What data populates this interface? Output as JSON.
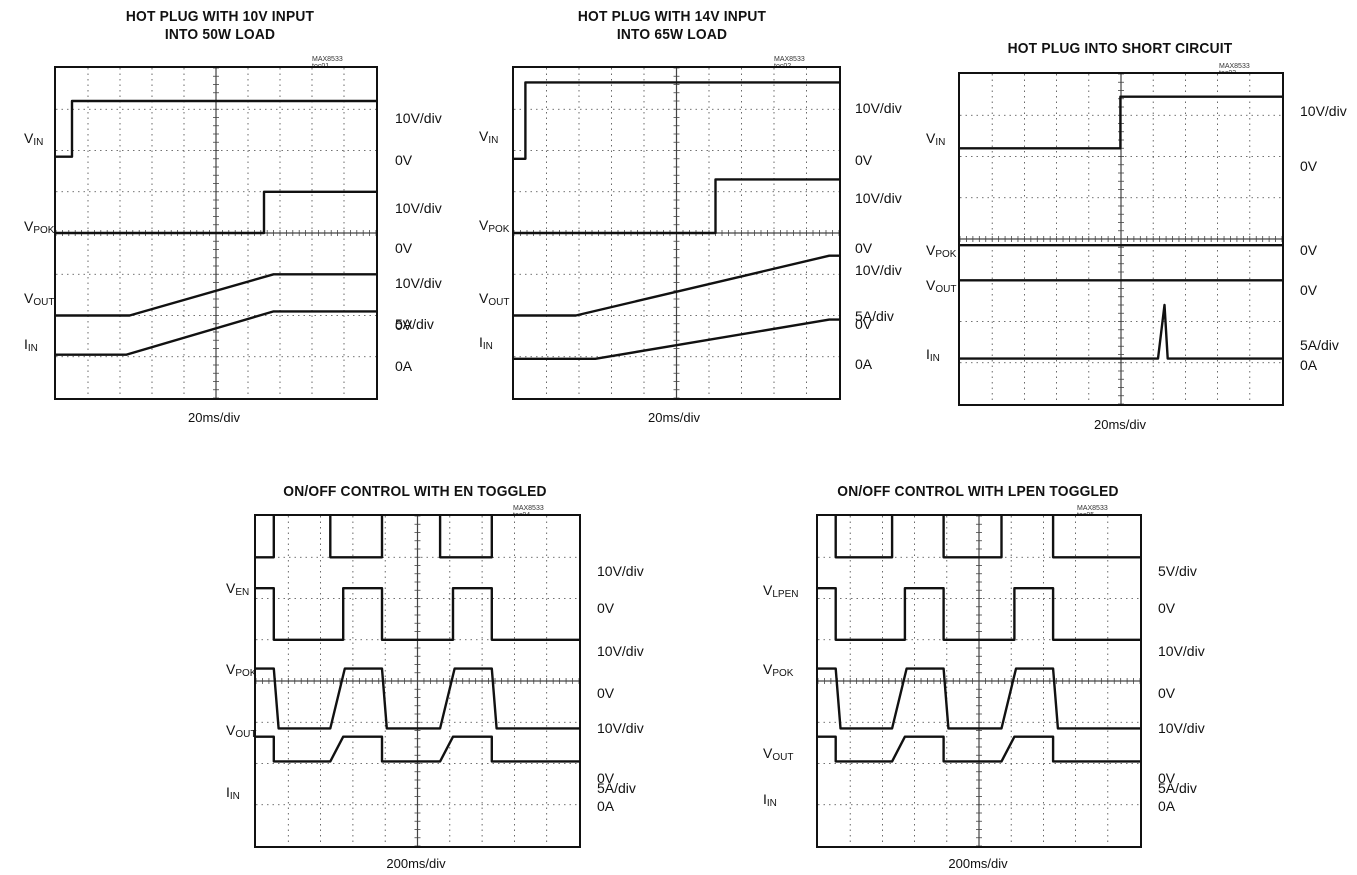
{
  "chart_data": [
    {
      "id": "toc01",
      "type": "line",
      "title": "HOT PLUG WITH 10V INPUT\nINTO 50W LOAD",
      "figure_id": "MAX8533 toc01",
      "time_scale": "20ms/div",
      "x": [
        0,
        1,
        2,
        3,
        4,
        5,
        6,
        7,
        8,
        9,
        10
      ],
      "series": [
        {
          "name": "V",
          "sub": "IN",
          "scale": "10V/div",
          "zero_label": "0V",
          "zero_div": 6.2,
          "points": [
            [
              0,
              -0.35
            ],
            [
              0.5,
              -0.35
            ],
            [
              0.5,
              1.0
            ],
            [
              10,
              1.0
            ]
          ]
        },
        {
          "name": "V",
          "sub": "POK",
          "scale": "10V/div",
          "zero_label": "0V",
          "zero_div": 4.0,
          "points": [
            [
              0,
              0
            ],
            [
              6.5,
              0
            ],
            [
              6.5,
              1.0
            ],
            [
              10,
              1.0
            ]
          ]
        },
        {
          "name": "V",
          "sub": "OUT",
          "scale": "10V/div",
          "zero_label": "0V",
          "zero_div": 2.0,
          "points": [
            [
              0,
              0
            ],
            [
              2.3,
              0
            ],
            [
              6.8,
              1.0
            ],
            [
              10,
              1.0
            ]
          ]
        },
        {
          "name": "I",
          "sub": "IN",
          "scale": "5A/div",
          "zero_label": "0A",
          "zero_div": 1.05,
          "points": [
            [
              0,
              0
            ],
            [
              2.2,
              0
            ],
            [
              6.8,
              1.05
            ],
            [
              10,
              1.05
            ]
          ]
        }
      ]
    },
    {
      "id": "toc02",
      "type": "line",
      "title": "HOT PLUG WITH 14V INPUT\nINTO 65W LOAD",
      "figure_id": "MAX8533 toc02",
      "time_scale": "20ms/div",
      "x": [
        0,
        1,
        2,
        3,
        4,
        5,
        6,
        7,
        8,
        9,
        10
      ],
      "series": [
        {
          "name": "V",
          "sub": "IN",
          "scale": "10V/div",
          "zero_label": "0V",
          "zero_div": 6.2,
          "points": [
            [
              0,
              -0.4
            ],
            [
              0.35,
              -0.4
            ],
            [
              0.35,
              1.45
            ],
            [
              10,
              1.45
            ]
          ]
        },
        {
          "name": "V",
          "sub": "POK",
          "scale": "10V/div",
          "zero_label": "0V",
          "zero_div": 4.0,
          "points": [
            [
              0,
              0
            ],
            [
              6.2,
              0
            ],
            [
              6.2,
              1.3
            ],
            [
              10,
              1.3
            ]
          ]
        },
        {
          "name": "V",
          "sub": "OUT",
          "scale": "10V/div",
          "zero_label": "0V",
          "zero_div": 2.0,
          "points": [
            [
              0,
              0
            ],
            [
              1.9,
              0
            ],
            [
              9.7,
              1.45
            ],
            [
              10,
              1.45
            ]
          ]
        },
        {
          "name": "I",
          "sub": "IN",
          "scale": "5A/div",
          "zero_label": "0A",
          "zero_div": 0.95,
          "points": [
            [
              0,
              0
            ],
            [
              2.5,
              0
            ],
            [
              9.7,
              0.95
            ],
            [
              10,
              0.95
            ]
          ]
        }
      ]
    },
    {
      "id": "toc03",
      "type": "line",
      "title": "HOT PLUG INTO SHORT CIRCUIT",
      "figure_id": "MAX8533 toc03",
      "time_scale": "20ms/div",
      "x": [
        0,
        1,
        2,
        3,
        4,
        5,
        6,
        7,
        8,
        9,
        10
      ],
      "series": [
        {
          "name": "V",
          "sub": "IN",
          "scale": "10V/div",
          "zero_label": "0V",
          "zero_div": 6.2,
          "points": [
            [
              0,
              0
            ],
            [
              4.98,
              0
            ],
            [
              4.98,
              1.25
            ],
            [
              10,
              1.25
            ]
          ]
        },
        {
          "name": "V",
          "sub": "POK",
          "scale": "",
          "zero_label": "0V",
          "zero_div": 3.85,
          "points": [
            [
              0,
              0
            ],
            [
              10,
              0
            ]
          ]
        },
        {
          "name": "V",
          "sub": "OUT",
          "scale": "",
          "zero_label": "0V",
          "zero_div": 3.0,
          "points": [
            [
              0,
              0
            ],
            [
              10,
              0
            ]
          ]
        },
        {
          "name": "I",
          "sub": "IN",
          "scale": "5A/div",
          "zero_label": "0A",
          "zero_div": 1.1,
          "points": [
            [
              0,
              0
            ],
            [
              6.15,
              0
            ],
            [
              6.35,
              1.3
            ],
            [
              6.45,
              0
            ],
            [
              10,
              0
            ]
          ]
        }
      ]
    },
    {
      "id": "toc04",
      "type": "line",
      "title": "ON/OFF CONTROL WITH EN TOGGLED",
      "figure_id": "MAX8533 toc04",
      "time_scale": "200ms/div",
      "x": [
        0,
        1,
        2,
        3,
        4,
        5,
        6,
        7,
        8,
        9,
        10
      ],
      "series": [
        {
          "name": "V",
          "sub": "EN",
          "scale": "10V/div",
          "zero_label": "0V",
          "zero_div": 7.0,
          "points": [
            [
              0,
              0
            ],
            [
              0.55,
              0
            ],
            [
              0.55,
              1.2
            ],
            [
              2.3,
              1.2
            ],
            [
              2.3,
              0
            ],
            [
              3.9,
              0
            ],
            [
              3.9,
              1.2
            ],
            [
              5.7,
              1.2
            ],
            [
              5.7,
              0
            ],
            [
              7.3,
              0
            ],
            [
              7.3,
              1.2
            ],
            [
              10,
              1.2
            ]
          ]
        },
        {
          "name": "V",
          "sub": "POK",
          "scale": "10V/div",
          "zero_label": "0V",
          "zero_div": 5.0,
          "points": [
            [
              0,
              1.25
            ],
            [
              0.55,
              1.25
            ],
            [
              0.55,
              0
            ],
            [
              2.7,
              0
            ],
            [
              2.7,
              1.25
            ],
            [
              3.9,
              1.25
            ],
            [
              3.9,
              0
            ],
            [
              6.1,
              0
            ],
            [
              6.1,
              1.25
            ],
            [
              7.3,
              1.25
            ],
            [
              7.3,
              0
            ],
            [
              10,
              0
            ]
          ]
        },
        {
          "name": "V",
          "sub": "OUT",
          "scale": "10V/div",
          "zero_label": "0V",
          "zero_div": 2.85,
          "points": [
            [
              0,
              1.45
            ],
            [
              0.55,
              1.45
            ],
            [
              0.7,
              0
            ],
            [
              2.3,
              0
            ],
            [
              2.75,
              1.45
            ],
            [
              3.9,
              1.45
            ],
            [
              4.05,
              0
            ],
            [
              5.7,
              0
            ],
            [
              6.15,
              1.45
            ],
            [
              7.3,
              1.45
            ],
            [
              7.45,
              0
            ],
            [
              10,
              0
            ]
          ]
        },
        {
          "name": "I",
          "sub": "IN",
          "scale": "5A/div",
          "zero_label": "0A",
          "zero_div": 2.05,
          "points": [
            [
              0,
              0.6
            ],
            [
              0.55,
              0.6
            ],
            [
              0.55,
              0
            ],
            [
              2.3,
              0
            ],
            [
              2.7,
              0.6
            ],
            [
              3.9,
              0.6
            ],
            [
              3.9,
              0
            ],
            [
              5.7,
              0
            ],
            [
              6.1,
              0.6
            ],
            [
              7.3,
              0.6
            ],
            [
              7.3,
              0
            ],
            [
              10,
              0
            ]
          ]
        }
      ]
    },
    {
      "id": "toc05",
      "type": "line",
      "title": "ON/OFF CONTROL WITH LPEN TOGGLED",
      "figure_id": "MAX8533 toc05",
      "time_scale": "200ms/div",
      "x": [
        0,
        1,
        2,
        3,
        4,
        5,
        6,
        7,
        8,
        9,
        10
      ],
      "series": [
        {
          "name": "V",
          "sub": "LPEN",
          "scale": "5V/div",
          "zero_label": "0V",
          "zero_div": 7.0,
          "points": [
            [
              0,
              1.1
            ],
            [
              0.55,
              1.1
            ],
            [
              0.55,
              0
            ],
            [
              2.3,
              0
            ],
            [
              2.3,
              1.1
            ],
            [
              3.9,
              1.1
            ],
            [
              3.9,
              0
            ],
            [
              5.7,
              0
            ],
            [
              5.7,
              1.1
            ],
            [
              7.3,
              1.1
            ],
            [
              7.3,
              0
            ],
            [
              10,
              0
            ]
          ]
        },
        {
          "name": "V",
          "sub": "POK",
          "scale": "10V/div",
          "zero_label": "0V",
          "zero_div": 5.0,
          "points": [
            [
              0,
              1.25
            ],
            [
              0.55,
              1.25
            ],
            [
              0.55,
              0
            ],
            [
              2.7,
              0
            ],
            [
              2.7,
              1.25
            ],
            [
              3.9,
              1.25
            ],
            [
              3.9,
              0
            ],
            [
              6.1,
              0
            ],
            [
              6.1,
              1.25
            ],
            [
              7.3,
              1.25
            ],
            [
              7.3,
              0
            ],
            [
              10,
              0
            ]
          ]
        },
        {
          "name": "V",
          "sub": "OUT",
          "scale": "10V/div",
          "zero_label": "0V",
          "zero_div": 2.85,
          "points": [
            [
              0,
              1.45
            ],
            [
              0.55,
              1.45
            ],
            [
              0.7,
              0
            ],
            [
              2.3,
              0
            ],
            [
              2.75,
              1.45
            ],
            [
              3.9,
              1.45
            ],
            [
              4.05,
              0
            ],
            [
              5.7,
              0
            ],
            [
              6.15,
              1.45
            ],
            [
              7.3,
              1.45
            ],
            [
              7.45,
              0
            ],
            [
              10,
              0
            ]
          ]
        },
        {
          "name": "I",
          "sub": "IN",
          "scale": "5A/div",
          "zero_label": "0A",
          "zero_div": 2.05,
          "points": [
            [
              0,
              0.6
            ],
            [
              0.55,
              0.6
            ],
            [
              0.55,
              0
            ],
            [
              2.3,
              0
            ],
            [
              2.7,
              0.6
            ],
            [
              3.9,
              0.6
            ],
            [
              3.9,
              0
            ],
            [
              5.7,
              0
            ],
            [
              6.1,
              0.6
            ],
            [
              7.3,
              0.6
            ],
            [
              7.3,
              0
            ],
            [
              10,
              0
            ]
          ]
        }
      ]
    }
  ]
}
